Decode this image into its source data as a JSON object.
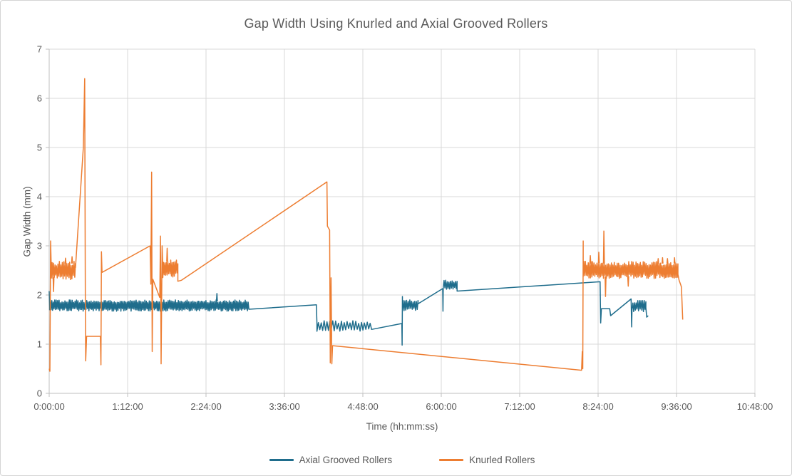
{
  "title": "Gap Width Using Knurled and Axial Grooved Rollers",
  "chart_data": {
    "type": "line",
    "title": "Gap Width Using Knurled and Axial Grooved Rollers",
    "xlabel": "Time (hh:mm:ss)",
    "ylabel": "Gap Width (mm)",
    "ylim": [
      0,
      7
    ],
    "xlim_seconds": [
      0,
      38880
    ],
    "grid": true,
    "legend_position": "bottom",
    "text_color": "#595959",
    "grid_color": "#d9d9d9",
    "axis_color": "#bfbfbf",
    "y_ticks": [
      0,
      1,
      2,
      3,
      4,
      5,
      6,
      7
    ],
    "x_ticks_seconds": [
      0,
      4320,
      8640,
      12960,
      17280,
      21600,
      25920,
      30240,
      34560,
      38880
    ],
    "x_tick_labels": [
      "0:00:00",
      "1:12:00",
      "2:24:00",
      "3:36:00",
      "4:48:00",
      "6:00:00",
      "7:12:00",
      "8:24:00",
      "9:36:00",
      "10:48:00"
    ],
    "series": [
      {
        "name": "Axial Grooved Rollers",
        "color": "#1f6d8c",
        "segments": [
          {
            "type": "line",
            "points": [
              [
                0,
                2.08
              ],
              [
                25,
                1.76
              ]
            ]
          },
          {
            "type": "band",
            "t0": 25,
            "t1": 11000,
            "lo": 1.7,
            "hi": 1.87,
            "step": 40
          },
          {
            "type": "line",
            "points": [
              [
                11000,
                1.71
              ],
              [
                14720,
                1.8
              ],
              [
                14750,
                1.42
              ]
            ]
          },
          {
            "type": "band",
            "t0": 14750,
            "t1": 17760,
            "lo": 1.29,
            "hi": 1.45,
            "step": 80
          },
          {
            "type": "line",
            "points": [
              [
                17760,
                1.3
              ],
              [
                19430,
                1.42
              ],
              [
                19445,
                0.98
              ],
              [
                19460,
                1.97
              ]
            ]
          },
          {
            "type": "band",
            "t0": 19460,
            "t1": 20320,
            "lo": 1.71,
            "hi": 1.88,
            "step": 45
          },
          {
            "type": "line",
            "points": [
              [
                20320,
                1.82
              ],
              [
                21680,
                2.13
              ],
              [
                21695,
                1.67
              ],
              [
                21710,
                2.18
              ]
            ]
          },
          {
            "type": "band",
            "t0": 21710,
            "t1": 22470,
            "lo": 2.14,
            "hi": 2.28,
            "step": 45
          },
          {
            "type": "line",
            "points": [
              [
                22470,
                2.08
              ],
              [
                30350,
                2.27
              ],
              [
                30380,
                1.43
              ],
              [
                30420,
                1.72
              ],
              [
                30880,
                1.72
              ],
              [
                30930,
                1.58
              ],
              [
                32060,
                1.92
              ],
              [
                32090,
                1.35
              ],
              [
                32110,
                1.74
              ]
            ]
          },
          {
            "type": "band",
            "t0": 32110,
            "t1": 32870,
            "lo": 1.69,
            "hi": 1.86,
            "step": 45
          },
          {
            "type": "line",
            "points": [
              [
                32870,
                1.74
              ],
              [
                32920,
                1.55
              ],
              [
                33000,
                1.58
              ]
            ]
          }
        ],
        "spikes": [
          [
            9240,
            2.03,
            1.87
          ]
        ]
      },
      {
        "name": "Knurled Rollers",
        "color": "#ed7d31",
        "segments": [
          {
            "type": "line",
            "points": [
              [
                0,
                0.5
              ],
              [
                40,
                0.45
              ],
              [
                80,
                3.1
              ],
              [
                120,
                2.42
              ]
            ]
          },
          {
            "type": "band",
            "t0": 120,
            "t1": 1450,
            "lo": 2.36,
            "hi": 2.64,
            "step": 40
          },
          {
            "type": "line",
            "points": [
              [
                1450,
                2.56
              ],
              [
                1880,
                5.0
              ],
              [
                1955,
                6.4
              ],
              [
                1990,
                1.9
              ],
              [
                2010,
                0.66
              ],
              [
                2060,
                1.16
              ],
              [
                2820,
                1.16
              ],
              [
                2850,
                0.58
              ],
              [
                2880,
                2.88
              ],
              [
                2910,
                2.46
              ]
            ]
          },
          {
            "type": "line",
            "points": [
              [
                2910,
                2.46
              ],
              [
                5560,
                3.0
              ],
              [
                5600,
                2.22
              ],
              [
                5645,
                4.5
              ],
              [
                5675,
                0.85
              ],
              [
                5710,
                2.32
              ],
              [
                6090,
                1.95
              ],
              [
                6130,
                3.2
              ],
              [
                6165,
                0.6
              ],
              [
                6220,
                3.0
              ],
              [
                6260,
                2.56
              ]
            ]
          },
          {
            "type": "band",
            "t0": 6260,
            "t1": 7090,
            "lo": 2.4,
            "hi": 2.68,
            "step": 40
          },
          {
            "type": "line",
            "points": [
              [
                7090,
                2.28
              ],
              [
                7290,
                2.3
              ],
              [
                15300,
                4.3
              ],
              [
                15330,
                3.4
              ],
              [
                15450,
                3.32
              ],
              [
                15485,
                0.62
              ],
              [
                15530,
                2.35
              ],
              [
                15570,
                0.6
              ],
              [
                15610,
                0.97
              ],
              [
                29330,
                0.47
              ],
              [
                29370,
                0.85
              ],
              [
                29395,
                0.5
              ],
              [
                29420,
                3.1
              ]
            ]
          },
          {
            "type": "band",
            "t0": 29420,
            "t1": 34640,
            "lo": 2.38,
            "hi": 2.64,
            "step": 40
          },
          {
            "type": "line",
            "points": [
              [
                34640,
                2.42
              ],
              [
                34700,
                2.3
              ],
              [
                34800,
                2.2
              ],
              [
                34830,
                2.16
              ],
              [
                34900,
                1.5
              ]
            ]
          }
        ],
        "spikes": [
          [
            240,
            2.07,
            2.36
          ],
          [
            900,
            2.75,
            2.64
          ],
          [
            1260,
            2.78,
            2.64
          ],
          [
            6500,
            2.95,
            2.68
          ],
          [
            29810,
            2.8,
            2.64
          ],
          [
            30280,
            2.87,
            2.64
          ],
          [
            30560,
            3.3,
            2.64
          ],
          [
            30650,
            1.97,
            2.38
          ],
          [
            31900,
            2.18,
            2.38
          ],
          [
            33550,
            2.74,
            2.64
          ],
          [
            33790,
            2.76,
            2.64
          ],
          [
            34060,
            2.74,
            2.64
          ],
          [
            34450,
            2.76,
            2.64
          ]
        ]
      }
    ]
  },
  "legend": {
    "items": [
      {
        "label": "Axial Grooved Rollers",
        "color": "#1f6d8c"
      },
      {
        "label": "Knurled Rollers",
        "color": "#ed7d31"
      }
    ]
  }
}
